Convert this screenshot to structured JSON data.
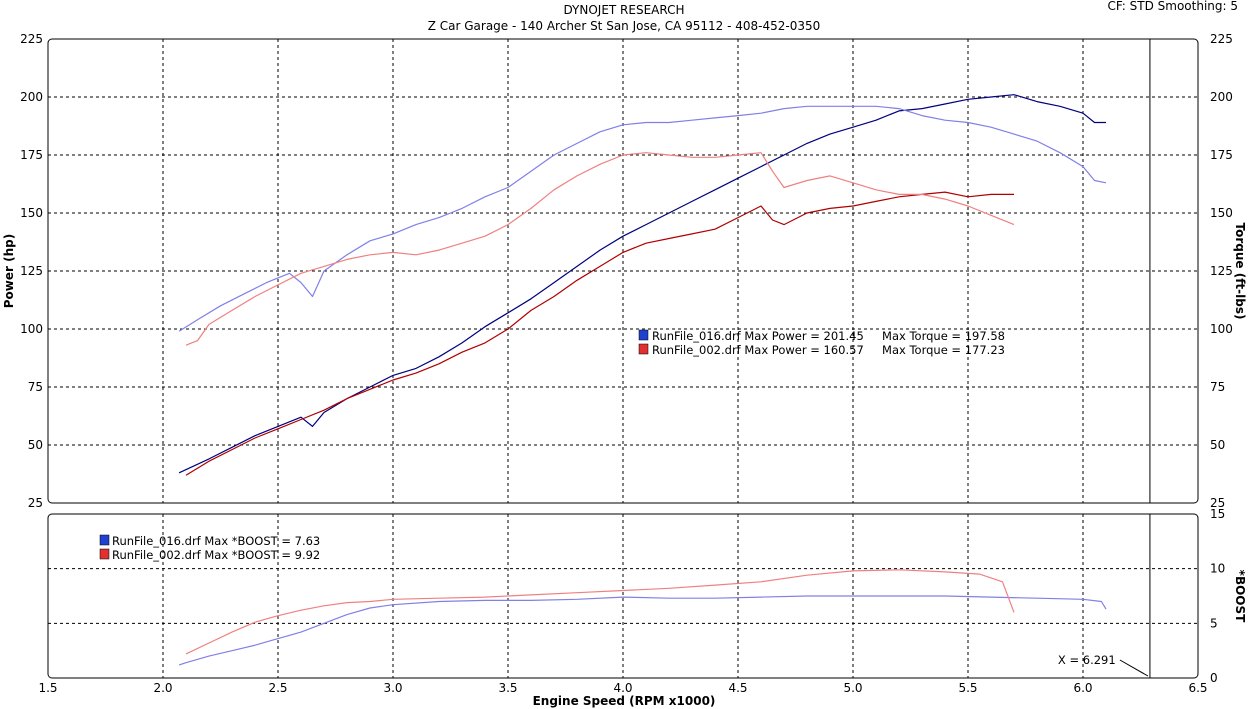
{
  "header": {
    "title": "DYNOJET RESEARCH",
    "subtitle": "Z Car Garage - 140 Archer St San Jose, CA 95112 - 408-452-0350",
    "settings": "CF: STD  Smoothing: 5"
  },
  "cursor": {
    "label": "X = 6.291",
    "x": 6.291
  },
  "chart_data": [
    {
      "type": "line",
      "title": "",
      "xlabel": "Engine Speed (RPM x1000)",
      "ylabel": "Power (hp)",
      "y2label": "Torque (ft-lbs)",
      "xlim": [
        1.5,
        6.5
      ],
      "ylim": [
        25,
        225
      ],
      "y2lim": [
        25,
        225
      ],
      "xticks": [
        "1.5",
        "2.0",
        "2.5",
        "3.0",
        "3.5",
        "4.0",
        "4.5",
        "5.0",
        "5.5",
        "6.0",
        "6.5"
      ],
      "yticks": [
        "25",
        "50",
        "75",
        "100",
        "125",
        "150",
        "175",
        "200",
        "225"
      ],
      "grid": true,
      "legend": [
        "RunFile_016.drf Max Power = 201.45     Max Torque = 197.58",
        "RunFile_002.drf Max Power = 160.57     Max Torque = 177.23"
      ],
      "series": [
        {
          "name": "RunFile_016.drf Power",
          "color": "#000080",
          "x": [
            2.07,
            2.2,
            2.3,
            2.4,
            2.5,
            2.6,
            2.65,
            2.7,
            2.8,
            2.9,
            3.0,
            3.1,
            3.2,
            3.3,
            3.4,
            3.5,
            3.6,
            3.7,
            3.8,
            3.9,
            4.0,
            4.1,
            4.2,
            4.3,
            4.4,
            4.5,
            4.6,
            4.7,
            4.8,
            4.9,
            5.0,
            5.1,
            5.2,
            5.3,
            5.4,
            5.5,
            5.6,
            5.7,
            5.8,
            5.9,
            6.0,
            6.05,
            6.1
          ],
          "y": [
            38,
            44,
            49,
            54,
            58,
            62,
            58,
            64,
            70,
            75,
            80,
            83,
            88,
            94,
            101,
            107,
            113,
            120,
            127,
            134,
            140,
            145,
            150,
            155,
            160,
            165,
            170,
            175,
            180,
            184,
            187,
            190,
            194,
            195,
            197,
            199,
            200,
            201,
            198,
            196,
            193,
            189,
            189
          ]
        },
        {
          "name": "RunFile_002.drf Power",
          "color": "#b00000",
          "x": [
            2.1,
            2.2,
            2.3,
            2.4,
            2.5,
            2.6,
            2.7,
            2.8,
            2.9,
            3.0,
            3.1,
            3.2,
            3.3,
            3.4,
            3.5,
            3.6,
            3.7,
            3.8,
            3.9,
            4.0,
            4.1,
            4.2,
            4.3,
            4.4,
            4.5,
            4.6,
            4.65,
            4.7,
            4.8,
            4.9,
            5.0,
            5.1,
            5.2,
            5.3,
            5.4,
            5.5,
            5.6,
            5.7
          ],
          "y": [
            37,
            43,
            48,
            53,
            57,
            61,
            65,
            70,
            74,
            78,
            81,
            85,
            90,
            94,
            100,
            108,
            114,
            121,
            127,
            133,
            137,
            139,
            141,
            143,
            148,
            153,
            147,
            145,
            150,
            152,
            153,
            155,
            157,
            158,
            159,
            157,
            158,
            158
          ]
        },
        {
          "name": "RunFile_016.drf Torque",
          "color": "#8080e8",
          "x": [
            2.07,
            2.15,
            2.25,
            2.35,
            2.45,
            2.55,
            2.6,
            2.65,
            2.7,
            2.8,
            2.9,
            3.0,
            3.1,
            3.2,
            3.3,
            3.4,
            3.5,
            3.6,
            3.7,
            3.8,
            3.9,
            4.0,
            4.1,
            4.2,
            4.3,
            4.4,
            4.5,
            4.6,
            4.7,
            4.8,
            4.9,
            5.0,
            5.1,
            5.2,
            5.3,
            5.4,
            5.5,
            5.6,
            5.7,
            5.8,
            5.9,
            6.0,
            6.05,
            6.1
          ],
          "y": [
            99,
            104,
            110,
            115,
            120,
            124,
            120,
            114,
            125,
            132,
            138,
            141,
            145,
            148,
            152,
            157,
            161,
            168,
            175,
            180,
            185,
            188,
            189,
            189,
            190,
            191,
            192,
            193,
            195,
            196,
            196,
            196,
            196,
            195,
            192,
            190,
            189,
            187,
            184,
            181,
            176,
            170,
            164,
            163
          ]
        },
        {
          "name": "RunFile_002.drf Torque",
          "color": "#f08080",
          "x": [
            2.1,
            2.15,
            2.2,
            2.3,
            2.4,
            2.5,
            2.6,
            2.7,
            2.8,
            2.9,
            3.0,
            3.1,
            3.2,
            3.3,
            3.4,
            3.5,
            3.6,
            3.7,
            3.8,
            3.9,
            4.0,
            4.1,
            4.2,
            4.3,
            4.4,
            4.5,
            4.6,
            4.65,
            4.7,
            4.8,
            4.9,
            5.0,
            5.1,
            5.2,
            5.3,
            5.4,
            5.5,
            5.6,
            5.7
          ],
          "y": [
            93,
            95,
            102,
            108,
            114,
            119,
            124,
            127,
            130,
            132,
            133,
            132,
            134,
            137,
            140,
            145,
            152,
            160,
            166,
            171,
            175,
            176,
            175,
            174,
            174,
            175,
            176,
            168,
            161,
            164,
            166,
            163,
            160,
            158,
            158,
            156,
            153,
            149,
            145
          ]
        }
      ]
    },
    {
      "type": "line",
      "title": "",
      "xlabel": "Engine Speed (RPM x1000)",
      "ylabel": "",
      "y2label": "*BOOST",
      "xlim": [
        1.5,
        6.5
      ],
      "y2lim": [
        0,
        15
      ],
      "y2ticks": [
        "0",
        "5",
        "10",
        "15"
      ],
      "grid": true,
      "legend": [
        "RunFile_016.drf Max *BOOST = 7.63",
        "RunFile_002.drf Max *BOOST = 9.92"
      ],
      "series": [
        {
          "name": "RunFile_016.drf *BOOST",
          "color": "#8080e8",
          "x": [
            2.07,
            2.1,
            2.2,
            2.3,
            2.4,
            2.5,
            2.6,
            2.7,
            2.8,
            2.9,
            3.0,
            3.2,
            3.4,
            3.6,
            3.8,
            4.0,
            4.2,
            4.4,
            4.6,
            4.8,
            5.0,
            5.2,
            5.4,
            5.6,
            5.8,
            6.0,
            6.08,
            6.1
          ],
          "y": [
            1.2,
            1.4,
            2.0,
            2.5,
            3.0,
            3.6,
            4.2,
            5.0,
            5.8,
            6.4,
            6.7,
            7.0,
            7.1,
            7.1,
            7.2,
            7.4,
            7.3,
            7.3,
            7.4,
            7.5,
            7.5,
            7.5,
            7.5,
            7.4,
            7.3,
            7.2,
            7.0,
            6.3
          ]
        },
        {
          "name": "RunFile_002.drf *BOOST",
          "color": "#f08080",
          "x": [
            2.1,
            2.2,
            2.3,
            2.4,
            2.5,
            2.6,
            2.7,
            2.8,
            2.9,
            3.0,
            3.2,
            3.4,
            3.6,
            3.8,
            4.0,
            4.2,
            4.4,
            4.6,
            4.8,
            5.0,
            5.2,
            5.4,
            5.55,
            5.65,
            5.7
          ],
          "y": [
            2.2,
            3.2,
            4.2,
            5.1,
            5.7,
            6.2,
            6.6,
            6.9,
            7.0,
            7.2,
            7.3,
            7.4,
            7.6,
            7.8,
            8.0,
            8.2,
            8.5,
            8.8,
            9.4,
            9.8,
            9.9,
            9.7,
            9.5,
            8.8,
            6.0
          ]
        }
      ]
    }
  ]
}
